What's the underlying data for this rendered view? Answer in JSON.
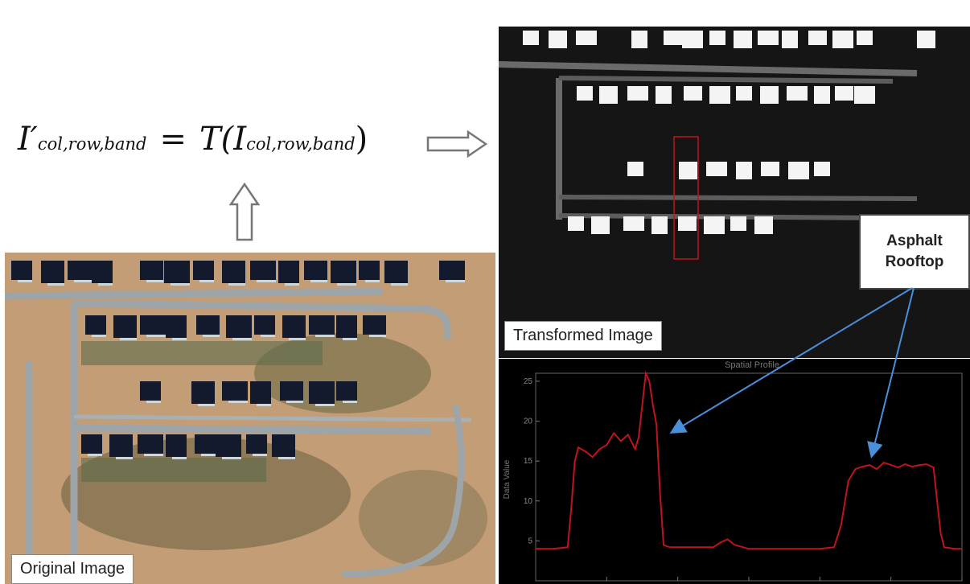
{
  "equation": {
    "lhs_symbol": "I′",
    "lhs_subscript": "col,row,band",
    "operator": "=",
    "function_name": "T(",
    "rhs_symbol": "I",
    "rhs_subscript": "col,row,band",
    "close_paren": ")"
  },
  "labels": {
    "original_image": "Original Image",
    "transformed_image": "Transformed Image",
    "asphalt_line1": "Asphalt",
    "asphalt_line2": "Rooftop",
    "profile_title": "Spatial Profile",
    "profile_ylabel": "Data Value"
  },
  "colors": {
    "profile_line": "#c0141c",
    "annotation_arrow": "#4a8fd9",
    "aerial_soil": "#c39d76",
    "aerial_roof": "#141a2e",
    "transformed_roof": "#f4f4f4"
  },
  "chart_data": {
    "type": "line",
    "title": "Spatial Profile",
    "xlabel": "",
    "ylabel": "Data Value",
    "xlim": [
      0,
      120
    ],
    "ylim": [
      0,
      26
    ],
    "x_ticks": [
      20,
      40,
      60,
      80,
      100,
      120
    ],
    "y_ticks": [
      5,
      10,
      15,
      20,
      25
    ],
    "grid": false,
    "series": [
      {
        "x": [
          0,
          5,
          9,
          10,
          11,
          12,
          14,
          16,
          18,
          20,
          22,
          24,
          26,
          28,
          29,
          30,
          31,
          32,
          33,
          34,
          35,
          36,
          37,
          38,
          40,
          45,
          50,
          52,
          54,
          56,
          60,
          70,
          80,
          84,
          86,
          88,
          90,
          92,
          94,
          96,
          98,
          100,
          102,
          104,
          106,
          108,
          110,
          112,
          113,
          114,
          115,
          118,
          120
        ],
        "y": [
          4,
          4,
          4.2,
          9,
          15,
          16.7,
          16.2,
          15.5,
          16.5,
          17,
          18.5,
          17.5,
          18.3,
          16.5,
          18,
          22,
          26,
          25,
          22,
          19.5,
          11,
          4.5,
          4.3,
          4.2,
          4.2,
          4.2,
          4.2,
          4.8,
          5.2,
          4.5,
          4,
          4,
          4,
          4.2,
          7,
          12.5,
          14,
          14.3,
          14.5,
          14,
          14.8,
          14.5,
          14.2,
          14.6,
          14.3,
          14.5,
          14.6,
          14.2,
          10,
          6,
          4.2,
          4,
          4
        ]
      }
    ]
  }
}
